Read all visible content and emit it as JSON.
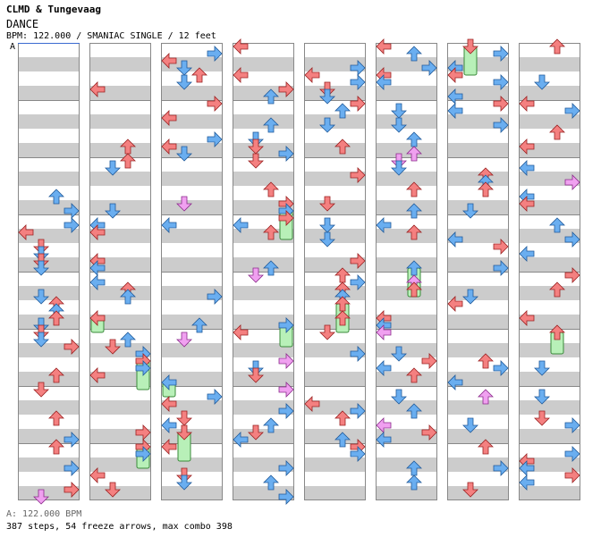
{
  "header": {
    "title": "CLMD & Tungevaag",
    "subtitle": "DANCE",
    "info": "BPM: 122.000 / SMANIAC SINGLE / 12 feet"
  },
  "section_marker": "A",
  "footer": {
    "bpm_line": "A: 122.000 BPM",
    "stats": "387 steps, 54 freeze arrows, max combo 398"
  },
  "colors": {
    "left": "#f48080",
    "down": "#6aaef0",
    "up": "#f48080",
    "right": "#f48080",
    "down_alt": "#6aaef0",
    "quarter": "#f48080",
    "eighth": "#6aaef0",
    "sixteenth": "#f0a0f0",
    "freeze": "#b8f0b8",
    "stripe": "#cccccc"
  },
  "columns": [
    {
      "id": 1,
      "start_measure": 0,
      "end_measure": 8
    },
    {
      "id": 2,
      "start_measure": 8,
      "end_measure": 16
    },
    {
      "id": 3,
      "start_measure": 16,
      "end_measure": 24
    },
    {
      "id": 4,
      "start_measure": 24,
      "end_measure": 32
    },
    {
      "id": 5,
      "start_measure": 32,
      "end_measure": 40
    },
    {
      "id": 6,
      "start_measure": 40,
      "end_measure": 48
    },
    {
      "id": 7,
      "start_measure": 48,
      "end_measure": 56
    },
    {
      "id": 8,
      "start_measure": 56,
      "end_measure": 64
    }
  ]
}
